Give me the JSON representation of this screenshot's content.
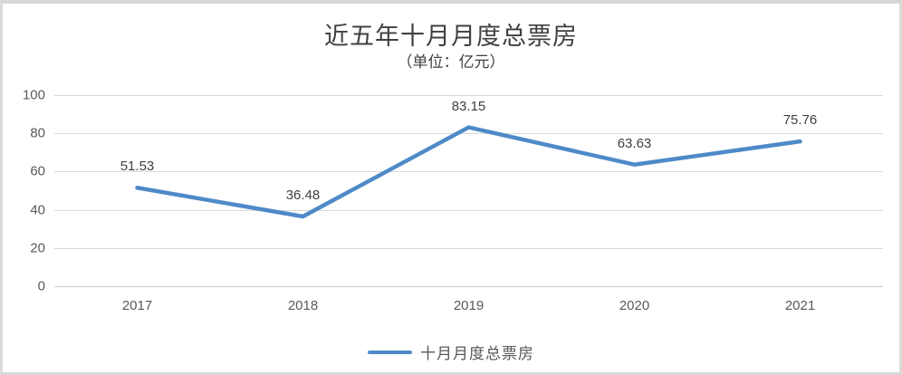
{
  "chart": {
    "title": "近五年十月月度总票房",
    "subtitle": "（单位：亿元）",
    "legend_label": "十月月度总票房",
    "colors": {
      "series_line": "#4E8AC8",
      "gridline": "#D9D9D9",
      "axis_text": "#595959",
      "title_text": "#404040",
      "data_label_text": "#404040",
      "frame_border": "#D7D7D7"
    }
  },
  "chart_data": {
    "type": "line",
    "title": "近五年十月月度总票房",
    "subtitle": "（单位：亿元）",
    "categories": [
      "2017",
      "2018",
      "2019",
      "2020",
      "2021"
    ],
    "series": [
      {
        "name": "十月月度总票房",
        "values": [
          51.53,
          36.48,
          83.15,
          63.63,
          75.76
        ],
        "data_labels": [
          "51.53",
          "36.48",
          "83.15",
          "63.63",
          "75.76"
        ]
      }
    ],
    "xlabel": "",
    "ylabel": "",
    "ylim": [
      0,
      100
    ],
    "yticks": [
      0,
      20,
      40,
      60,
      80,
      100
    ],
    "grid": "horizontal",
    "legend_position": "bottom"
  }
}
